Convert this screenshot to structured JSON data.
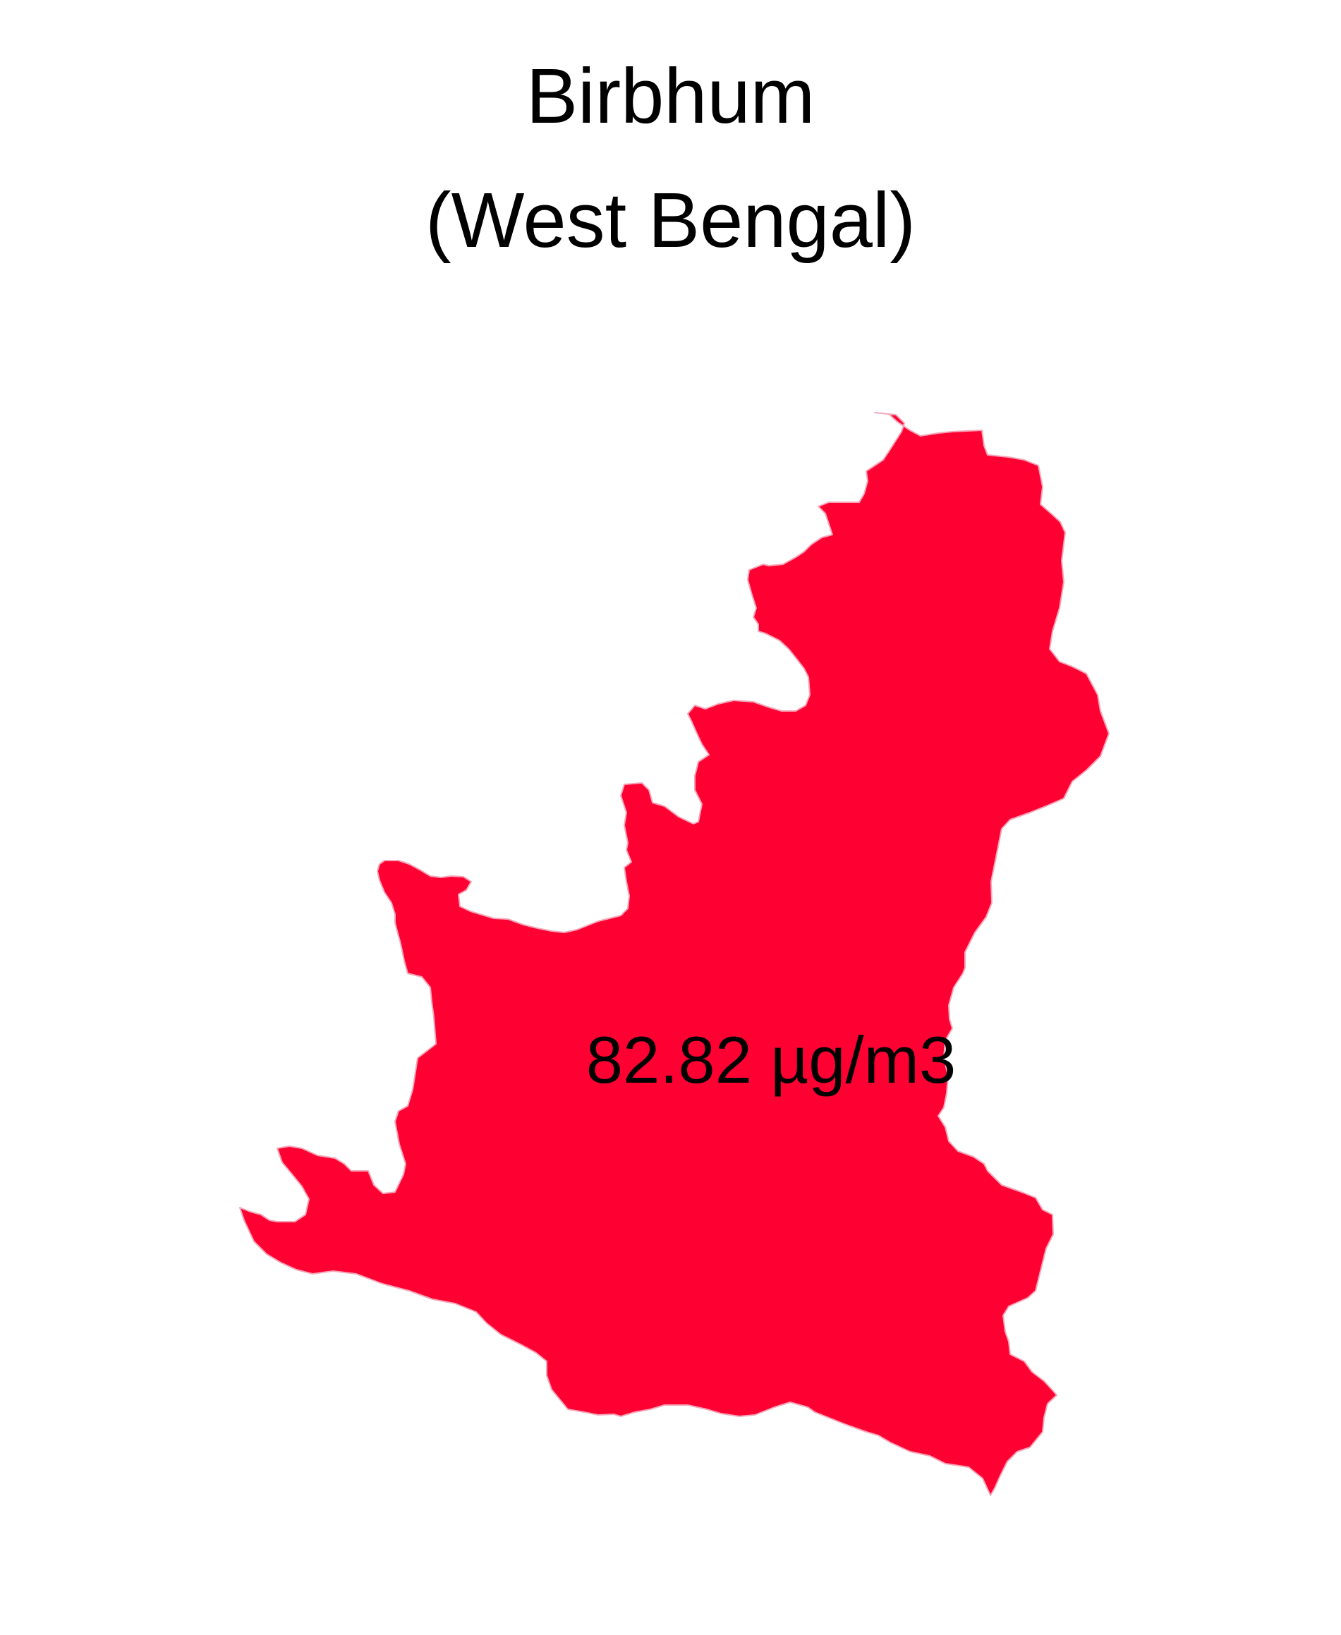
{
  "map": {
    "title_line1": "Birbhum",
    "title_line2": "(West Bengal)",
    "district": {
      "value_label": "82.82 µg/m3",
      "fill_color": "#FF0033",
      "border_color": "#F4A6B8"
    }
  }
}
